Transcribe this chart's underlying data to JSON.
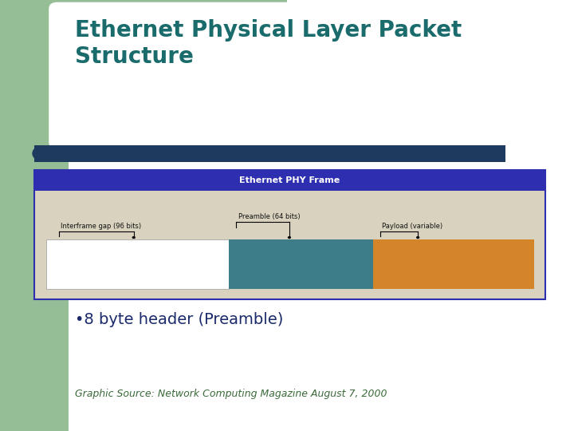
{
  "title": "Ethernet Physical Layer Packet\nStructure",
  "title_color": "#1a6b6b",
  "title_fontsize": 20,
  "bg_color": "#ffffff",
  "green_rect_color": "#96be96",
  "teal_bar_color": "#1e3a5f",
  "frame_title": "Ethernet PHY Frame",
  "frame_title_bg": "#2e2eb0",
  "frame_title_color": "#ffffff",
  "frame_title_fontsize": 8,
  "frame_bg": "#d8d2be",
  "frame_border": "#2e2eb0",
  "segment_white_label": "Interframe gap (96 bits)",
  "segment_teal_label": "Preamble (64 bits)",
  "segment_orange_label": "Payload (variable)",
  "segment_white_color": "#ffffff",
  "segment_teal_color": "#3d7d8a",
  "segment_orange_color": "#d4852a",
  "segment_label_color": "#000000",
  "segment_label_fontsize": 6.0,
  "bullet_text": "•8 byte header (Preamble)",
  "bullet_color": "#1a2a6b",
  "bullet_fontsize": 14,
  "source_text": "Graphic Source: Network Computing Magazine August 7, 2000",
  "source_color": "#3a6a3a",
  "source_fontsize": 9
}
